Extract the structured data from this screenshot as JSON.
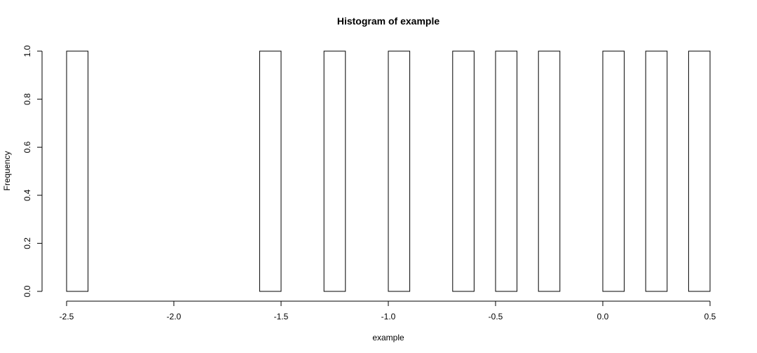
{
  "chart_data": {
    "type": "bar",
    "title": "Histogram of example",
    "xlabel": "example",
    "ylabel": "Frequency",
    "xlim": [
      -2.5,
      0.5
    ],
    "ylim": [
      0,
      1
    ],
    "x_ticks": [
      -2.5,
      -2.0,
      -1.5,
      -1.0,
      -0.5,
      0.0,
      0.5
    ],
    "x_tick_labels": [
      "-2.5",
      "-2.0",
      "-1.5",
      "-1.0",
      "-0.5",
      "0.0",
      "0.5"
    ],
    "y_ticks": [
      0,
      0.2,
      0.4,
      0.6,
      0.8,
      1.0
    ],
    "y_tick_labels": [
      "0.0",
      "0.2",
      "0.4",
      "0.6",
      "0.8",
      "1.0"
    ],
    "grid": false,
    "legend": "none",
    "bar_fill": "#ffffff",
    "bar_stroke": "#000000",
    "bins": [
      {
        "start": -2.5,
        "end": -2.4,
        "count": 1
      },
      {
        "start": -2.4,
        "end": -2.3,
        "count": 0
      },
      {
        "start": -2.3,
        "end": -2.2,
        "count": 0
      },
      {
        "start": -2.2,
        "end": -2.1,
        "count": 0
      },
      {
        "start": -2.1,
        "end": -2.0,
        "count": 0
      },
      {
        "start": -2.0,
        "end": -1.9,
        "count": 0
      },
      {
        "start": -1.9,
        "end": -1.8,
        "count": 0
      },
      {
        "start": -1.8,
        "end": -1.7,
        "count": 0
      },
      {
        "start": -1.7,
        "end": -1.6,
        "count": 0
      },
      {
        "start": -1.6,
        "end": -1.5,
        "count": 1
      },
      {
        "start": -1.5,
        "end": -1.4,
        "count": 0
      },
      {
        "start": -1.4,
        "end": -1.3,
        "count": 0
      },
      {
        "start": -1.3,
        "end": -1.2,
        "count": 1
      },
      {
        "start": -1.2,
        "end": -1.1,
        "count": 0
      },
      {
        "start": -1.1,
        "end": -1.0,
        "count": 0
      },
      {
        "start": -1.0,
        "end": -0.9,
        "count": 1
      },
      {
        "start": -0.9,
        "end": -0.8,
        "count": 0
      },
      {
        "start": -0.8,
        "end": -0.7,
        "count": 0
      },
      {
        "start": -0.7,
        "end": -0.6,
        "count": 1
      },
      {
        "start": -0.6,
        "end": -0.5,
        "count": 0
      },
      {
        "start": -0.5,
        "end": -0.4,
        "count": 1
      },
      {
        "start": -0.4,
        "end": -0.3,
        "count": 0
      },
      {
        "start": -0.3,
        "end": -0.2,
        "count": 1
      },
      {
        "start": -0.2,
        "end": -0.1,
        "count": 0
      },
      {
        "start": -0.1,
        "end": 0.0,
        "count": 0
      },
      {
        "start": 0.0,
        "end": 0.1,
        "count": 1
      },
      {
        "start": 0.1,
        "end": 0.2,
        "count": 0
      },
      {
        "start": 0.2,
        "end": 0.3,
        "count": 1
      },
      {
        "start": 0.3,
        "end": 0.4,
        "count": 0
      },
      {
        "start": 0.4,
        "end": 0.5,
        "count": 1
      }
    ]
  }
}
